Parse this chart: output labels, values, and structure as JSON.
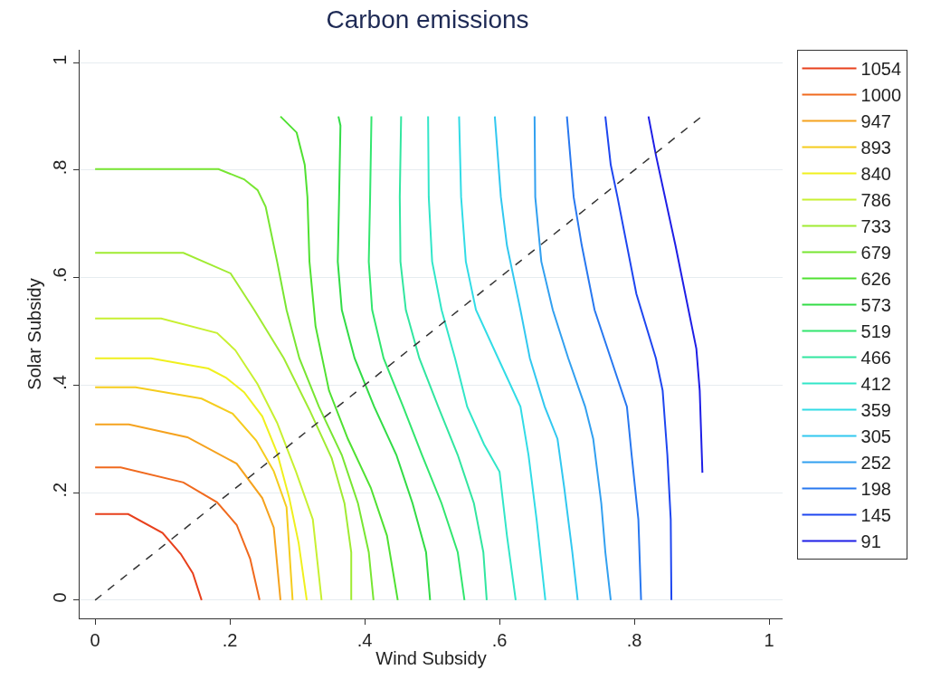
{
  "chart_data": {
    "type": "line",
    "title": "Carbon emissions",
    "xlabel": "Wind Subsidy",
    "ylabel": "Solar Subsidy",
    "xlim": [
      -0.023,
      1.02
    ],
    "ylim": [
      -0.034,
      1.024
    ],
    "xticks": [
      0,
      {
        "value": 0.2,
        "label": ".2"
      },
      {
        "value": 0.4,
        "label": ".4"
      },
      {
        "value": 0.6,
        "label": ".6"
      },
      {
        "value": 0.8,
        "label": ".8"
      },
      1
    ],
    "yticks": [
      0,
      {
        "value": 0.2,
        "label": ".2"
      },
      {
        "value": 0.4,
        "label": ".4"
      },
      {
        "value": 0.6,
        "label": ".6"
      },
      {
        "value": 0.8,
        "label": ".8"
      },
      1
    ],
    "grid": "y",
    "legend": "right",
    "marker": "none",
    "line_style": "solid",
    "series": [
      {
        "name": "1054",
        "color": "#e8401c",
        "x": [
          0,
          0.049,
          0.1,
          0.127,
          0.145,
          0.158
        ],
        "values": [
          0.16,
          0.16,
          0.125,
          0.086,
          0.05,
          0
        ]
      },
      {
        "name": "1000",
        "color": "#f06a1e",
        "x": [
          0,
          0.038,
          0.131,
          0.181,
          0.21,
          0.23,
          0.244
        ],
        "values": [
          0.247,
          0.247,
          0.219,
          0.182,
          0.14,
          0.077,
          0
        ]
      },
      {
        "name": "947",
        "color": "#f5a21e",
        "x": [
          0,
          0.05,
          0.137,
          0.21,
          0.248,
          0.265,
          0.275
        ],
        "values": [
          0.327,
          0.327,
          0.303,
          0.254,
          0.19,
          0.135,
          0
        ]
      },
      {
        "name": "893",
        "color": "#f5cc1e",
        "x": [
          0,
          0.06,
          0.158,
          0.204,
          0.239,
          0.265,
          0.284,
          0.293
        ],
        "values": [
          0.396,
          0.396,
          0.375,
          0.347,
          0.297,
          0.24,
          0.173,
          0
        ]
      },
      {
        "name": "840",
        "color": "#f0f01e",
        "x": [
          0,
          0.083,
          0.168,
          0.194,
          0.221,
          0.248,
          0.27,
          0.288,
          0.302,
          0.314
        ],
        "values": [
          0.45,
          0.45,
          0.431,
          0.414,
          0.387,
          0.342,
          0.274,
          0.19,
          0.106,
          0
        ]
      },
      {
        "name": "786",
        "color": "#c8f032",
        "x": [
          0,
          0.098,
          0.181,
          0.208,
          0.241,
          0.27,
          0.298,
          0.323,
          0.336
        ],
        "values": [
          0.524,
          0.524,
          0.497,
          0.465,
          0.402,
          0.33,
          0.239,
          0.15,
          0
        ]
      },
      {
        "name": "733",
        "color": "#a0eb32",
        "x": [
          0,
          0.09,
          0.131,
          0.201,
          0.236,
          0.28,
          0.318,
          0.351,
          0.37,
          0.38,
          0.38
        ],
        "values": [
          0.646,
          0.646,
          0.646,
          0.608,
          0.54,
          0.45,
          0.354,
          0.264,
          0.18,
          0.089,
          0
        ]
      },
      {
        "name": "679",
        "color": "#78e632",
        "x": [
          0,
          0.183,
          0.221,
          0.241,
          0.253,
          0.27,
          0.284,
          0.303,
          0.332,
          0.366,
          0.39,
          0.406,
          0.413
        ],
        "values": [
          0.802,
          0.802,
          0.783,
          0.763,
          0.732,
          0.63,
          0.54,
          0.45,
          0.36,
          0.27,
          0.18,
          0.089,
          0
        ]
      },
      {
        "name": "626",
        "color": "#50e132",
        "x": [
          0.275,
          0.299,
          0.311,
          0.315,
          0.318,
          0.327,
          0.347,
          0.375,
          0.409,
          0.433,
          0.449
        ],
        "values": [
          0.9,
          0.87,
          0.81,
          0.75,
          0.63,
          0.51,
          0.39,
          0.3,
          0.209,
          0.12,
          0
        ]
      },
      {
        "name": "573",
        "color": "#32dc46",
        "x": [
          0.361,
          0.364,
          0.362,
          0.36,
          0.366,
          0.385,
          0.414,
          0.447,
          0.471,
          0.491,
          0.497
        ],
        "values": [
          0.9,
          0.883,
          0.75,
          0.63,
          0.54,
          0.45,
          0.36,
          0.27,
          0.18,
          0.089,
          0
        ]
      },
      {
        "name": "519",
        "color": "#32e66e",
        "x": [
          0.41,
          0.408,
          0.406,
          0.411,
          0.428,
          0.457,
          0.485,
          0.514,
          0.538,
          0.548
        ],
        "values": [
          0.9,
          0.75,
          0.63,
          0.54,
          0.45,
          0.36,
          0.27,
          0.18,
          0.089,
          0
        ]
      },
      {
        "name": "466",
        "color": "#32e6a0",
        "x": [
          0.454,
          0.452,
          0.453,
          0.461,
          0.481,
          0.509,
          0.538,
          0.562,
          0.576,
          0.581
        ],
        "values": [
          0.9,
          0.75,
          0.63,
          0.54,
          0.45,
          0.36,
          0.27,
          0.18,
          0.089,
          0
        ]
      },
      {
        "name": "412",
        "color": "#32e6c8",
        "x": [
          0.494,
          0.495,
          0.5,
          0.514,
          0.534,
          0.552,
          0.577,
          0.6,
          0.611,
          0.624
        ],
        "values": [
          0.9,
          0.75,
          0.63,
          0.54,
          0.45,
          0.36,
          0.29,
          0.239,
          0.12,
          0
        ]
      },
      {
        "name": "359",
        "color": "#32dce6",
        "x": [
          0.54,
          0.543,
          0.55,
          0.565,
          0.598,
          0.631,
          0.643,
          0.655,
          0.668
        ],
        "values": [
          0.9,
          0.75,
          0.63,
          0.54,
          0.45,
          0.36,
          0.27,
          0.15,
          0
        ]
      },
      {
        "name": "305",
        "color": "#32c8f0",
        "x": [
          0.593,
          0.602,
          0.611,
          0.621,
          0.631,
          0.645,
          0.667,
          0.686,
          0.696,
          0.708,
          0.716
        ],
        "values": [
          0.9,
          0.75,
          0.66,
          0.6,
          0.54,
          0.45,
          0.36,
          0.3,
          0.209,
          0.089,
          0
        ]
      },
      {
        "name": "252",
        "color": "#32a0f0",
        "x": [
          0.652,
          0.653,
          0.662,
          0.679,
          0.702,
          0.727,
          0.739,
          0.751,
          0.757,
          0.765
        ],
        "values": [
          0.9,
          0.75,
          0.63,
          0.54,
          0.45,
          0.36,
          0.3,
          0.18,
          0.089,
          0
        ]
      },
      {
        "name": "198",
        "color": "#2878f0",
        "x": [
          0.7,
          0.71,
          0.722,
          0.741,
          0.765,
          0.789,
          0.796,
          0.806,
          0.81
        ],
        "values": [
          0.9,
          0.75,
          0.66,
          0.54,
          0.45,
          0.36,
          0.27,
          0.15,
          0
        ]
      },
      {
        "name": "145",
        "color": "#1e46f0",
        "x": [
          0.757,
          0.765,
          0.775,
          0.803,
          0.832,
          0.842,
          0.849,
          0.854,
          0.855
        ],
        "values": [
          0.9,
          0.81,
          0.75,
          0.57,
          0.45,
          0.39,
          0.27,
          0.15,
          0
        ]
      },
      {
        "name": "91",
        "color": "#1e1ee6",
        "x": [
          0.821,
          0.832,
          0.861,
          0.892,
          0.897,
          0.901
        ],
        "values": [
          0.9,
          0.828,
          0.66,
          0.468,
          0.39,
          0.237
        ]
      },
      {
        "color": "#333333",
        "line_style": "dashed",
        "x": [
          0,
          0.9
        ],
        "values": [
          0,
          0.9
        ]
      }
    ]
  }
}
